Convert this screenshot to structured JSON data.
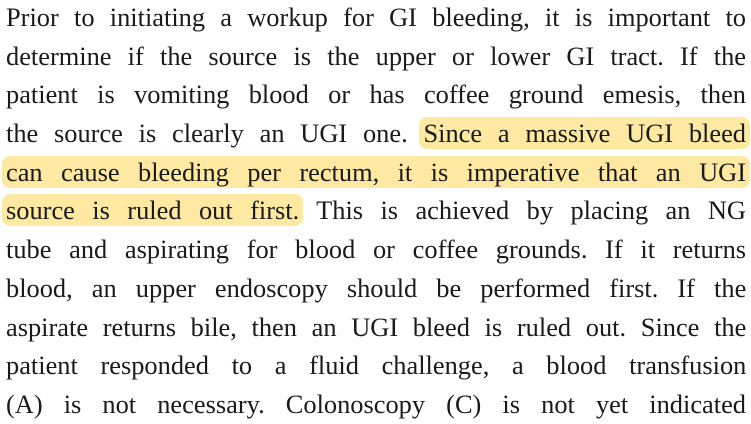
{
  "document": {
    "lines": [
      {
        "segments": [
          {
            "text": "Prior to initiating a workup for GI bleeding, it is important to",
            "highlight": false
          }
        ]
      },
      {
        "segments": [
          {
            "text": "determine if the source is the upper or lower GI tract. If the",
            "highlight": false
          }
        ]
      },
      {
        "segments": [
          {
            "text": "patient is vomiting blood or has coffee ground emesis, then",
            "highlight": false
          }
        ]
      },
      {
        "segments": [
          {
            "text": "the source is clearly an UGI one. ",
            "highlight": false
          },
          {
            "text": "Since a massive UGI bleed",
            "highlight": true
          }
        ]
      },
      {
        "segments": [
          {
            "text": "can cause bleeding per rectum, it is imperative that an UGI",
            "highlight": true
          }
        ]
      },
      {
        "segments": [
          {
            "text": "source is ruled out first.",
            "highlight": true
          },
          {
            "text": " This is achieved by placing an NG",
            "highlight": false
          }
        ]
      },
      {
        "segments": [
          {
            "text": "tube and aspirating for blood or coffee grounds. If it returns",
            "highlight": false
          }
        ]
      },
      {
        "segments": [
          {
            "text": "blood, an upper endoscopy should be performed first. If the",
            "highlight": false
          }
        ]
      },
      {
        "segments": [
          {
            "text": "aspirate returns bile, then an UGI bleed is ruled out. Since the",
            "highlight": false
          }
        ]
      },
      {
        "segments": [
          {
            "text": "patient responded to a fluid challenge, a blood transfusion",
            "highlight": false
          }
        ]
      },
      {
        "segments": [
          {
            "text": "(A) is not necessary. Colonoscopy (C) is not yet indicated",
            "highlight": false
          }
        ]
      }
    ],
    "highlight_color": "#fde9a2"
  }
}
